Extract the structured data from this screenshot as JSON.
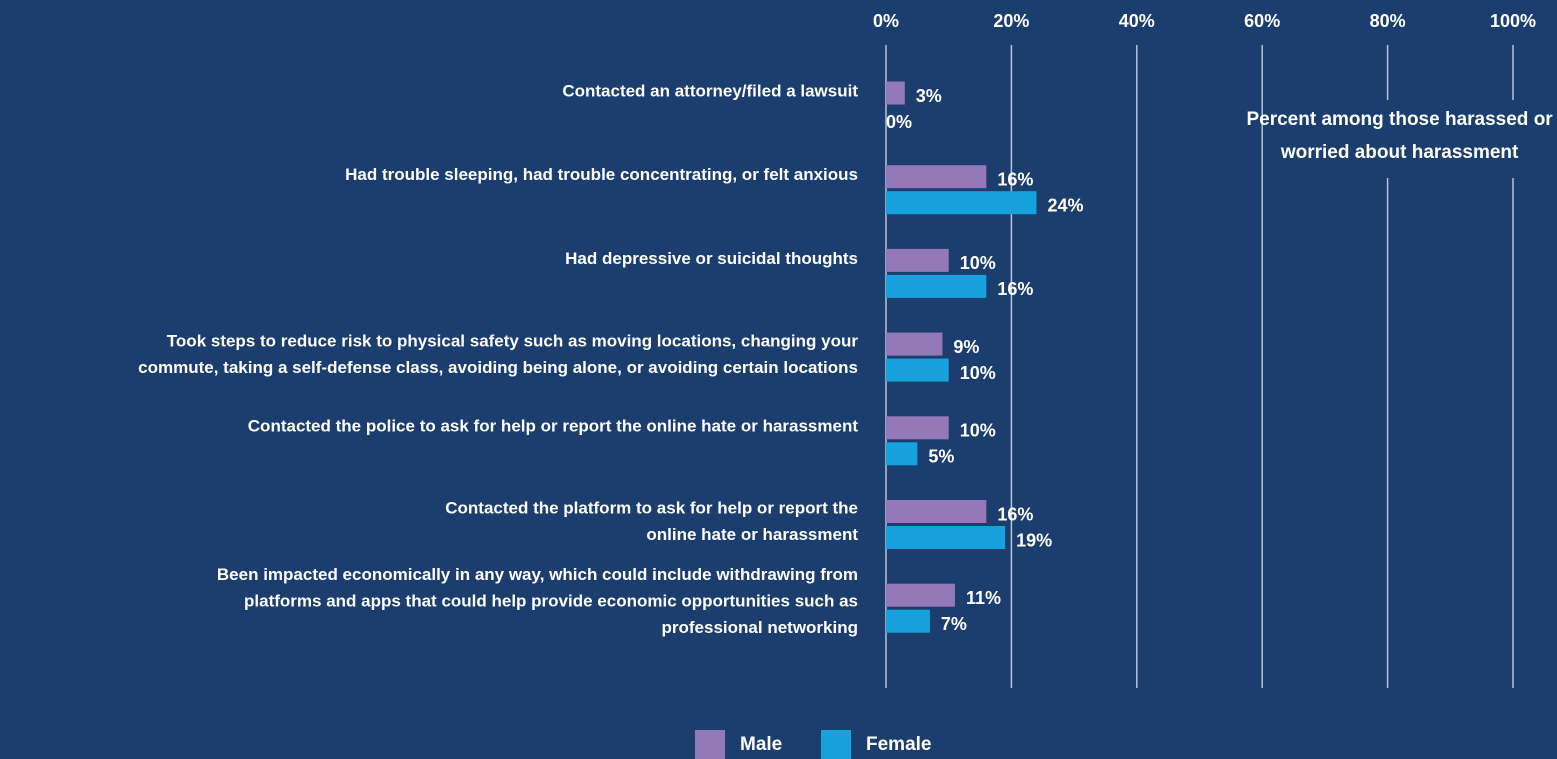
{
  "chart_data": {
    "type": "bar",
    "orientation": "horizontal",
    "categories": [
      [
        "Contacted an attorney/filed a lawsuit"
      ],
      [
        "Had trouble sleeping, had trouble concentrating, or felt anxious"
      ],
      [
        "Had depressive or suicidal thoughts"
      ],
      [
        "Took steps to reduce risk to physical safety such as moving locations, changing your",
        "commute, taking a self-defense class, avoiding being alone, or avoiding certain locations"
      ],
      [
        "Contacted the police to ask for help or report the online hate or harassment"
      ],
      [
        "Contacted the platform to ask for help or report the",
        "online hate or harassment"
      ],
      [
        "Been impacted economically in any way, which could include withdrawing from",
        "platforms and apps that could help provide economic opportunities such as",
        "professional networking"
      ]
    ],
    "series": [
      {
        "name": "Male",
        "color": "#9479b8",
        "values": [
          3,
          16,
          10,
          9,
          10,
          16,
          11
        ],
        "value_labels": [
          "3%",
          "16%",
          "10%",
          "9%",
          "10%",
          "16%",
          "11%"
        ]
      },
      {
        "name": "Female",
        "color": "#18a2dd",
        "values": [
          0,
          24,
          16,
          10,
          5,
          19,
          7
        ],
        "value_labels": [
          "0%",
          "24%",
          "16%",
          "10%",
          "5%",
          "19%",
          "7%"
        ]
      }
    ],
    "xlim": [
      0,
      100
    ],
    "xticks": [
      {
        "value": 0,
        "label": "0%"
      },
      {
        "value": 20,
        "label": "20%"
      },
      {
        "value": 40,
        "label": "40%"
      },
      {
        "value": 60,
        "label": "60%"
      },
      {
        "value": 80,
        "label": "80%"
      },
      {
        "value": 100,
        "label": "100%"
      }
    ],
    "grid": true,
    "annotation": [
      "Percent among those harassed or",
      "worried about harassment"
    ],
    "legend": "bottom"
  }
}
